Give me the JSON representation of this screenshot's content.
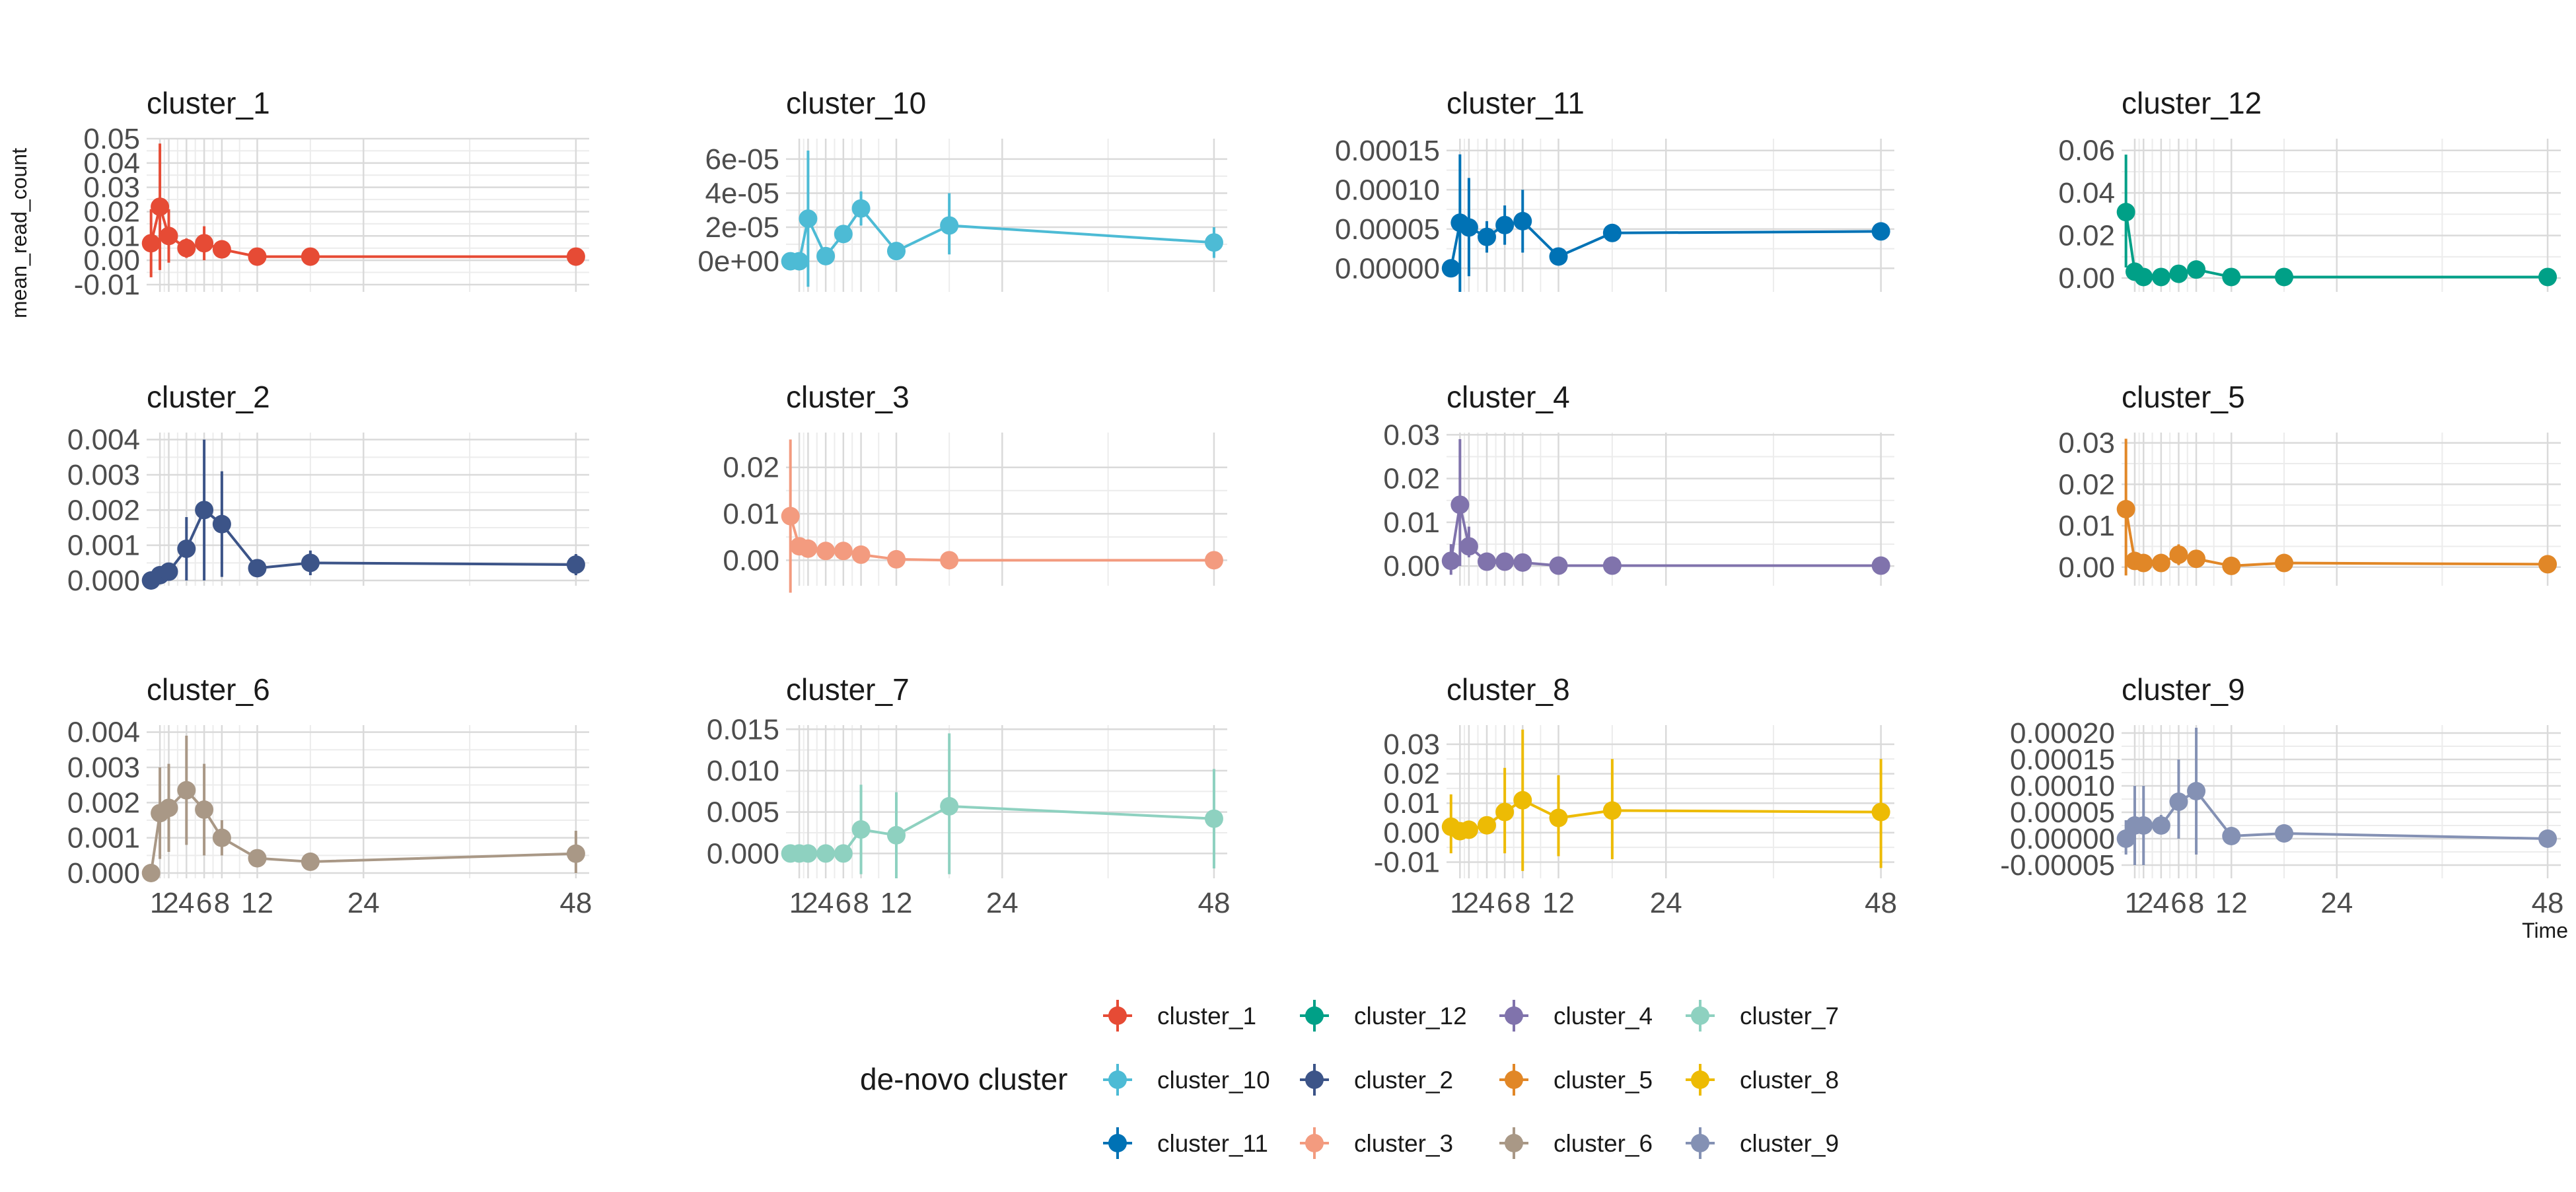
{
  "chart_data": {
    "type": "line",
    "layout": "facet-grid-3x4",
    "xlabel": "Time",
    "ylabel": "mean_read_count",
    "x_ticks": [
      1,
      2,
      4,
      6,
      8,
      12,
      24,
      48
    ],
    "x_tick_labels": [
      "1",
      "2",
      "4",
      "6",
      "8",
      "12",
      "24",
      "48"
    ],
    "x": [
      0,
      1,
      2,
      4,
      6,
      8,
      12,
      18,
      24,
      48
    ],
    "xlim": [
      -0.5,
      49.5
    ],
    "legend": {
      "title": "de-novo cluster",
      "placement": "bottom",
      "entries": [
        "cluster_1",
        "cluster_12",
        "cluster_4",
        "cluster_7",
        "cluster_10",
        "cluster_2",
        "cluster_5",
        "cluster_8",
        "cluster_11",
        "cluster_3",
        "cluster_6",
        "cluster_9"
      ]
    },
    "panels": [
      {
        "name": "cluster_1",
        "color": "#E64B35",
        "ylim": [
          -0.013,
          0.05
        ],
        "y_ticks": [
          -0.01,
          0,
          0.01,
          0.02,
          0.03,
          0.04,
          0.05
        ],
        "y_tick_labels": [
          "-0.01",
          "0.00",
          "0.01",
          "0.02",
          "0.03",
          "0.04",
          "0.05"
        ],
        "values": [
          0.007,
          0.022,
          0.01,
          0.005,
          0.007,
          0.0045,
          0.0015,
          0.0015,
          null,
          0.0015
        ],
        "lower": [
          -0.007,
          -0.004,
          -0.001,
          0.001,
          0.0,
          0.001,
          0.0005,
          0.0005,
          null,
          0.0005
        ],
        "upper": [
          0.021,
          0.048,
          0.021,
          0.009,
          0.014,
          0.008,
          0.0025,
          0.0025,
          null,
          0.0025
        ]
      },
      {
        "name": "cluster_10",
        "color": "#4DBBD5",
        "ylim": [
          -1.8e-05,
          7.2e-05
        ],
        "y_ticks": [
          0,
          2e-05,
          4e-05,
          6e-05
        ],
        "y_tick_labels": [
          "0e+00",
          "2e-05",
          "4e-05",
          "6e-05"
        ],
        "values": [
          0.0,
          0.0,
          2.5e-05,
          3e-06,
          1.6e-05,
          3.1e-05,
          6e-06,
          2.1e-05,
          null,
          1.1e-05
        ],
        "lower": [
          0.0,
          0.0,
          -1.5e-05,
          1e-06,
          1.1e-05,
          2.1e-05,
          6e-06,
          4e-06,
          null,
          2e-06
        ],
        "upper": [
          0.0,
          0.0,
          6.5e-05,
          5e-06,
          2.1e-05,
          4.1e-05,
          6e-06,
          4e-05,
          null,
          2e-05
        ]
      },
      {
        "name": "cluster_11",
        "color": "#0072B5",
        "ylim": [
          -3e-05,
          0.000165
        ],
        "y_ticks": [
          0,
          5e-05,
          0.0001,
          0.00015
        ],
        "y_tick_labels": [
          "0.00000",
          "0.00005",
          "0.00010",
          "0.00015"
        ],
        "values": [
          0.0,
          5.8e-05,
          5.2e-05,
          4e-05,
          5.5e-05,
          6e-05,
          1.5e-05,
          4.5e-05,
          null,
          4.7e-05
        ],
        "lower": [
          0.0,
          -3e-05,
          -1e-05,
          2e-05,
          3e-05,
          2e-05,
          1.5e-05,
          3.5e-05,
          null,
          3.7e-05
        ],
        "upper": [
          0.0,
          0.000145,
          0.000115,
          6e-05,
          8e-05,
          0.0001,
          1.5e-05,
          5.5e-05,
          null,
          5.7e-05
        ]
      },
      {
        "name": "cluster_12",
        "color": "#00A087",
        "ylim": [
          -0.0065,
          0.0655
        ],
        "y_ticks": [
          0,
          0.02,
          0.04,
          0.06
        ],
        "y_tick_labels": [
          "0.00",
          "0.02",
          "0.04",
          "0.06"
        ],
        "values": [
          0.031,
          0.003,
          0.0005,
          0.0005,
          0.002,
          0.004,
          0.0005,
          0.0005,
          null,
          0.0005
        ],
        "lower": [
          0.005,
          0.001,
          0.0,
          0.0,
          0.0,
          0.002,
          0.0,
          0.0,
          null,
          0.0
        ],
        "upper": [
          0.058,
          0.005,
          0.001,
          0.001,
          0.004,
          0.006,
          0.001,
          0.001,
          null,
          0.001
        ]
      },
      {
        "name": "cluster_2",
        "color": "#3C5488",
        "ylim": [
          -0.00015,
          0.0042
        ],
        "y_ticks": [
          0,
          0.001,
          0.002,
          0.003,
          0.004
        ],
        "y_tick_labels": [
          "0.000",
          "0.001",
          "0.002",
          "0.003",
          "0.004"
        ],
        "values": [
          0.0,
          0.00015,
          0.00025,
          0.0009,
          0.002,
          0.0016,
          0.00035,
          0.0005,
          null,
          0.00045
        ],
        "lower": [
          0.0,
          0.0,
          0.0001,
          0.0,
          0.0,
          0.0001,
          0.00025,
          0.00015,
          null,
          0.00015
        ],
        "upper": [
          0.0,
          0.0003,
          0.0004,
          0.0018,
          0.004,
          0.0031,
          0.00045,
          0.00085,
          null,
          0.00075
        ]
      },
      {
        "name": "cluster_3",
        "color": "#F39B7F",
        "ylim": [
          -0.0055,
          0.0275
        ],
        "y_ticks": [
          0,
          0.01,
          0.02
        ],
        "y_tick_labels": [
          "0.00",
          "0.01",
          "0.02"
        ],
        "values": [
          0.0095,
          0.003,
          0.0025,
          0.002,
          0.002,
          0.0012,
          0.0002,
          0.0,
          null,
          0.0
        ],
        "lower": [
          -0.007,
          0.002,
          0.002,
          0.0015,
          0.0015,
          0.0008,
          0.0,
          0.0,
          null,
          0.0
        ],
        "upper": [
          0.026,
          0.004,
          0.003,
          0.0025,
          0.0025,
          0.0016,
          0.0004,
          0.0,
          null,
          0.0
        ]
      },
      {
        "name": "cluster_4",
        "color": "#8073AC",
        "ylim": [
          -0.0045,
          0.0305
        ],
        "y_ticks": [
          0,
          0.01,
          0.02,
          0.03
        ],
        "y_tick_labels": [
          "0.00",
          "0.01",
          "0.02",
          "0.03"
        ],
        "values": [
          0.0012,
          0.014,
          0.0045,
          0.001,
          0.001,
          0.0008,
          0.0001,
          0.0001,
          null,
          0.0001
        ],
        "lower": [
          -0.002,
          0.0,
          0.002,
          0.0005,
          0.0005,
          0.0003,
          0.0,
          0.0,
          null,
          0.0
        ],
        "upper": [
          0.005,
          0.029,
          0.009,
          0.0015,
          0.0015,
          0.0013,
          0.0002,
          0.0002,
          null,
          0.0002
        ]
      },
      {
        "name": "cluster_5",
        "color": "#E18727",
        "ylim": [
          -0.0045,
          0.0325
        ],
        "y_ticks": [
          0,
          0.01,
          0.02,
          0.03
        ],
        "y_tick_labels": [
          "0.00",
          "0.01",
          "0.02",
          "0.03"
        ],
        "values": [
          0.014,
          0.0015,
          0.001,
          0.001,
          0.003,
          0.002,
          0.0003,
          0.001,
          null,
          0.0007
        ],
        "lower": [
          -0.002,
          0.0005,
          0.0005,
          0.0005,
          0.0005,
          0.001,
          0.0,
          0.0005,
          null,
          0.0
        ],
        "upper": [
          0.031,
          0.0025,
          0.0015,
          0.0015,
          0.0055,
          0.003,
          0.0006,
          0.0015,
          null,
          0.0014
        ]
      },
      {
        "name": "cluster_6",
        "color": "#A99886",
        "ylim": [
          -0.00015,
          0.0042
        ],
        "y_ticks": [
          0,
          0.001,
          0.002,
          0.003,
          0.004
        ],
        "y_tick_labels": [
          "0.000",
          "0.001",
          "0.002",
          "0.003",
          "0.004"
        ],
        "values": [
          0.0,
          0.0017,
          0.00185,
          0.00235,
          0.0018,
          0.001,
          0.00042,
          0.00032,
          null,
          0.00055
        ],
        "lower": [
          0.0,
          0.0004,
          0.0006,
          0.0008,
          0.0005,
          0.0005,
          0.00025,
          0.0002,
          null,
          0.0
        ],
        "upper": [
          0.0,
          0.003,
          0.0031,
          0.0039,
          0.0031,
          0.0015,
          0.0006,
          0.00045,
          null,
          0.0012
        ]
      },
      {
        "name": "cluster_7",
        "color": "#8ED1C0",
        "ylim": [
          -0.003,
          0.0155
        ],
        "y_ticks": [
          0,
          0.005,
          0.01,
          0.015
        ],
        "y_tick_labels": [
          "0.000",
          "0.005",
          "0.010",
          "0.015"
        ],
        "values": [
          0.0,
          0.0,
          0.0,
          0.0,
          0.0,
          0.0029,
          0.0022,
          0.0057,
          null,
          0.0042
        ],
        "lower": [
          0.0,
          0.0,
          0.0,
          0.0,
          0.0,
          -0.0025,
          -0.003,
          -0.0025,
          null,
          -0.0018
        ],
        "upper": [
          0.0,
          0.0,
          0.0,
          0.0,
          0.0,
          0.0083,
          0.0074,
          0.0145,
          null,
          0.0102
        ]
      },
      {
        "name": "cluster_8",
        "color": "#EDBB04",
        "ylim": [
          -0.0155,
          0.0365
        ],
        "y_ticks": [
          -0.01,
          0,
          0.01,
          0.02,
          0.03
        ],
        "y_tick_labels": [
          "-0.01",
          "0.00",
          "0.01",
          "0.02",
          "0.03"
        ],
        "values": [
          0.002,
          0.0005,
          0.001,
          0.0025,
          0.007,
          0.011,
          0.005,
          0.0075,
          null,
          0.007
        ],
        "lower": [
          -0.007,
          0.0,
          0.0,
          0.0,
          -0.007,
          -0.013,
          -0.008,
          -0.009,
          null,
          -0.012
        ],
        "upper": [
          0.013,
          0.001,
          0.002,
          0.005,
          0.022,
          0.035,
          0.0195,
          0.025,
          null,
          0.025
        ]
      },
      {
        "name": "cluster_9",
        "color": "#8491B4",
        "ylim": [
          -7.5e-05,
          0.000215
        ],
        "y_ticks": [
          -5e-05,
          0,
          5e-05,
          0.0001,
          0.00015,
          0.0002
        ],
        "y_tick_labels": [
          "-0.00005",
          "0.00000",
          "0.00005",
          "0.00010",
          "0.00015",
          "0.00020"
        ],
        "values": [
          0.0,
          2.5e-05,
          2.5e-05,
          2.5e-05,
          7e-05,
          9e-05,
          5e-06,
          1e-05,
          null,
          0.0
        ],
        "lower": [
          -3e-05,
          -5e-05,
          -5e-05,
          1e-05,
          0.0,
          -3e-05,
          0.0,
          5e-06,
          null,
          0.0
        ],
        "upper": [
          3.5e-05,
          0.0001,
          0.0001,
          4.5e-05,
          0.00015,
          0.00021,
          1e-05,
          1.5e-05,
          null,
          0.0
        ]
      }
    ]
  }
}
